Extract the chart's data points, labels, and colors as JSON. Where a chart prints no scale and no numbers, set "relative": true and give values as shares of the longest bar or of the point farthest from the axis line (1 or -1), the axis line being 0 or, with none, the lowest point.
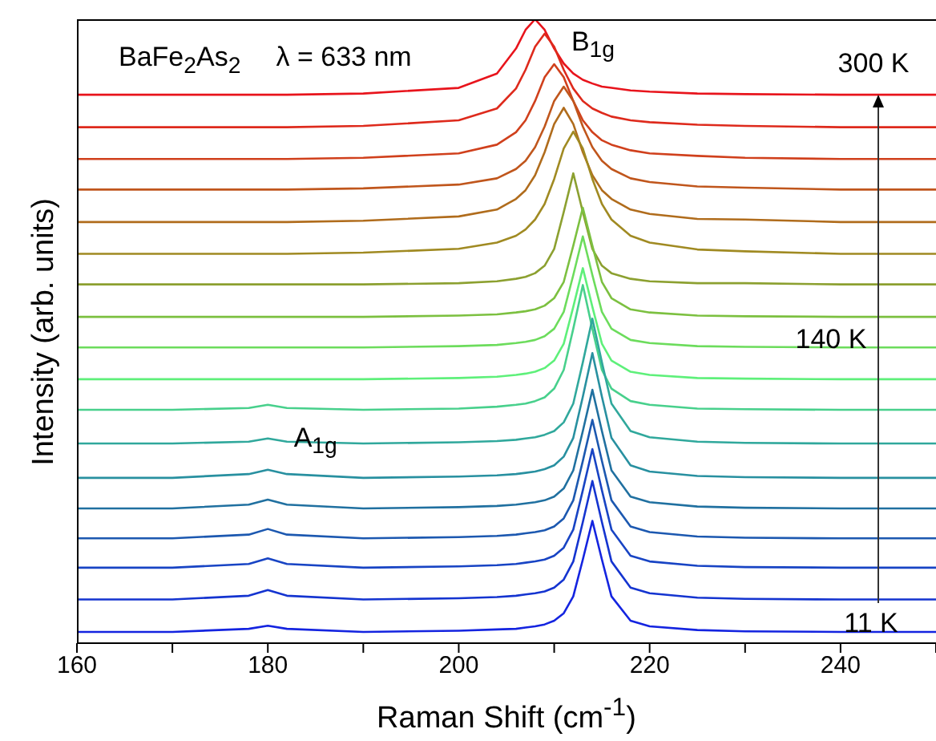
{
  "chart_data": {
    "type": "line",
    "relative": true,
    "xlabel": "Raman Shift (cm$^{-1}$)",
    "ylabel": "Intensity (arb. units)",
    "annotations": [
      "BaFe$_{2}$As$_{2}$",
      "λ = 633 nm",
      "B$_{1g}$",
      {
        "text": "A$_{1g}$",
        "x": 185,
        "y": 0.325
      },
      "300 K",
      {
        "text": "140 K",
        "x": 239,
        "y": 0.487
      },
      {
        "text": "11 K",
        "x": 243.2,
        "y": 0.031
      }
    ],
    "x": [
      160,
      170,
      178,
      180,
      182,
      190,
      200,
      204,
      206,
      207,
      208,
      209,
      210,
      211,
      212,
      213,
      214,
      215,
      216,
      218,
      220,
      225,
      230,
      240,
      250
    ],
    "xlim": [
      160,
      250
    ],
    "xticks": [
      160,
      {
        "value": 170,
        "label": null
      },
      180,
      {
        "value": 190,
        "label": null
      },
      200,
      {
        "value": 210,
        "label": null
      },
      220,
      {
        "value": 230,
        "label": null
      },
      240,
      {
        "value": 250,
        "label": null
      }
    ],
    "legend": false,
    "marker": "none",
    "line_style": "solid",
    "series": [
      {
        "color": "#e8141c",
        "values": [
          0.879,
          0.879,
          0.879,
          0.879,
          0.879,
          0.881,
          0.89,
          0.913,
          0.953,
          0.983,
          1.0,
          0.983,
          0.953,
          0.929,
          0.913,
          0.903,
          0.897,
          0.892,
          0.89,
          0.886,
          0.884,
          0.881,
          0.88,
          0.879,
          0.879
        ]
      },
      {
        "color": "#de2a1c",
        "values": [
          0.827,
          0.827,
          0.827,
          0.827,
          0.827,
          0.829,
          0.838,
          0.857,
          0.889,
          0.919,
          0.956,
          0.977,
          0.956,
          0.919,
          0.889,
          0.869,
          0.857,
          0.85,
          0.844,
          0.838,
          0.835,
          0.831,
          0.829,
          0.827,
          0.827
        ]
      },
      {
        "color": "#d0401c",
        "values": [
          0.776,
          0.776,
          0.776,
          0.776,
          0.776,
          0.778,
          0.785,
          0.799,
          0.819,
          0.838,
          0.869,
          0.907,
          0.928,
          0.907,
          0.869,
          0.838,
          0.819,
          0.806,
          0.799,
          0.79,
          0.785,
          0.781,
          0.778,
          0.776,
          0.776
        ]
      },
      {
        "color": "#c0561c",
        "values": [
          0.727,
          0.727,
          0.727,
          0.727,
          0.727,
          0.729,
          0.735,
          0.745,
          0.76,
          0.773,
          0.795,
          0.828,
          0.869,
          0.892,
          0.869,
          0.828,
          0.795,
          0.773,
          0.76,
          0.745,
          0.739,
          0.732,
          0.73,
          0.727,
          0.727
        ]
      },
      {
        "color": "#b06c1c",
        "values": [
          0.675,
          0.675,
          0.675,
          0.675,
          0.675,
          0.677,
          0.684,
          0.695,
          0.712,
          0.726,
          0.75,
          0.787,
          0.832,
          0.858,
          0.832,
          0.787,
          0.75,
          0.726,
          0.712,
          0.695,
          0.688,
          0.68,
          0.679,
          0.675,
          0.675
        ]
      },
      {
        "color": "#a08a22",
        "values": [
          0.624,
          0.624,
          0.624,
          0.624,
          0.624,
          0.626,
          0.632,
          0.642,
          0.653,
          0.663,
          0.679,
          0.704,
          0.744,
          0.793,
          0.82,
          0.793,
          0.744,
          0.704,
          0.679,
          0.653,
          0.642,
          0.631,
          0.628,
          0.624,
          0.624
        ]
      },
      {
        "color": "#8ca030",
        "values": [
          0.575,
          0.575,
          0.575,
          0.575,
          0.575,
          0.575,
          0.577,
          0.58,
          0.584,
          0.587,
          0.593,
          0.605,
          0.632,
          0.691,
          0.753,
          0.691,
          0.632,
          0.605,
          0.593,
          0.584,
          0.58,
          0.577,
          0.577,
          0.575,
          0.575
        ]
      },
      {
        "color": "#7cc040",
        "values": [
          0.523,
          0.523,
          0.523,
          0.523,
          0.523,
          0.523,
          0.525,
          0.527,
          0.53,
          0.532,
          0.535,
          0.541,
          0.553,
          0.579,
          0.637,
          0.698,
          0.637,
          0.579,
          0.553,
          0.535,
          0.53,
          0.525,
          0.524,
          0.523,
          0.523
        ]
      },
      {
        "color": "#6cdc5c",
        "values": [
          0.474,
          0.474,
          0.474,
          0.474,
          0.474,
          0.474,
          0.476,
          0.478,
          0.481,
          0.483,
          0.486,
          0.492,
          0.504,
          0.531,
          0.59,
          0.652,
          0.59,
          0.531,
          0.504,
          0.486,
          0.481,
          0.476,
          0.475,
          0.474,
          0.474
        ]
      },
      {
        "color": "#5ef07a",
        "values": [
          0.423,
          0.423,
          0.423,
          0.423,
          0.423,
          0.423,
          0.425,
          0.427,
          0.43,
          0.432,
          0.435,
          0.441,
          0.453,
          0.48,
          0.539,
          0.601,
          0.539,
          0.48,
          0.453,
          0.435,
          0.43,
          0.425,
          0.424,
          0.423,
          0.423
        ]
      },
      {
        "color": "#48d08c",
        "values": [
          0.374,
          0.374,
          0.377,
          0.382,
          0.377,
          0.374,
          0.376,
          0.379,
          0.382,
          0.384,
          0.388,
          0.394,
          0.408,
          0.438,
          0.504,
          0.574,
          0.504,
          0.438,
          0.408,
          0.388,
          0.382,
          0.376,
          0.375,
          0.374,
          0.374
        ]
      },
      {
        "color": "#30a89c",
        "values": [
          0.32,
          0.32,
          0.323,
          0.328,
          0.323,
          0.32,
          0.322,
          0.324,
          0.326,
          0.328,
          0.33,
          0.334,
          0.34,
          0.354,
          0.384,
          0.45,
          0.52,
          0.45,
          0.384,
          0.34,
          0.33,
          0.323,
          0.321,
          0.32,
          0.32
        ]
      },
      {
        "color": "#2890a0",
        "values": [
          0.265,
          0.265,
          0.271,
          0.278,
          0.271,
          0.265,
          0.267,
          0.269,
          0.271,
          0.273,
          0.275,
          0.279,
          0.285,
          0.299,
          0.329,
          0.395,
          0.465,
          0.395,
          0.329,
          0.285,
          0.275,
          0.268,
          0.266,
          0.265,
          0.265
        ]
      },
      {
        "color": "#2070a0",
        "values": [
          0.216,
          0.216,
          0.222,
          0.23,
          0.222,
          0.216,
          0.218,
          0.22,
          0.222,
          0.224,
          0.226,
          0.229,
          0.235,
          0.248,
          0.277,
          0.34,
          0.406,
          0.34,
          0.277,
          0.235,
          0.226,
          0.219,
          0.217,
          0.216,
          0.216
        ]
      },
      {
        "color": "#1c58b0",
        "values": [
          0.168,
          0.168,
          0.174,
          0.183,
          0.174,
          0.168,
          0.17,
          0.172,
          0.174,
          0.176,
          0.178,
          0.181,
          0.187,
          0.2,
          0.229,
          0.292,
          0.358,
          0.292,
          0.229,
          0.187,
          0.178,
          0.171,
          0.169,
          0.168,
          0.168
        ]
      },
      {
        "color": "#1844c4",
        "values": [
          0.121,
          0.121,
          0.127,
          0.136,
          0.127,
          0.121,
          0.123,
          0.125,
          0.127,
          0.129,
          0.131,
          0.134,
          0.14,
          0.153,
          0.182,
          0.245,
          0.311,
          0.245,
          0.182,
          0.14,
          0.131,
          0.124,
          0.122,
          0.121,
          0.121
        ]
      },
      {
        "color": "#1434d0",
        "values": [
          0.07,
          0.07,
          0.076,
          0.085,
          0.076,
          0.07,
          0.072,
          0.074,
          0.076,
          0.078,
          0.08,
          0.083,
          0.089,
          0.102,
          0.131,
          0.194,
          0.26,
          0.194,
          0.131,
          0.089,
          0.08,
          0.073,
          0.071,
          0.07,
          0.07
        ]
      },
      {
        "color": "#1424e0",
        "values": [
          0.018,
          0.018,
          0.023,
          0.028,
          0.023,
          0.018,
          0.02,
          0.022,
          0.023,
          0.025,
          0.027,
          0.03,
          0.036,
          0.048,
          0.075,
          0.134,
          0.196,
          0.134,
          0.075,
          0.036,
          0.027,
          0.021,
          0.019,
          0.018,
          0.018
        ]
      }
    ]
  }
}
